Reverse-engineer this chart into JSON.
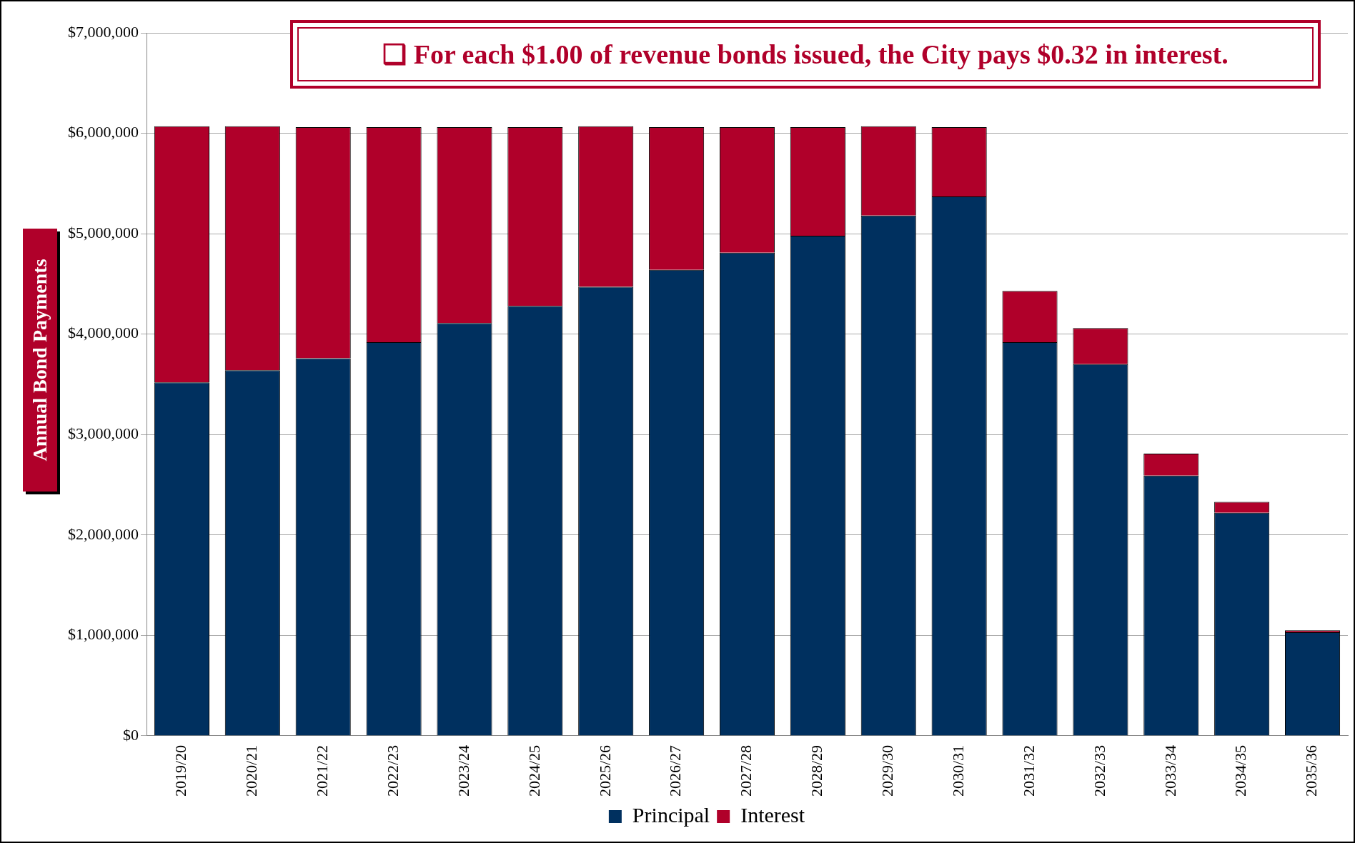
{
  "chart_data": {
    "type": "bar",
    "stacked": true,
    "ylabel": "Annual Bond Payments",
    "annotations": [
      "❑ For each $1.00 of revenue bonds issued, the City pays $0.32 in interest."
    ],
    "categories": [
      "2019/20",
      "2020/21",
      "2021/22",
      "2022/23",
      "2023/24",
      "2024/25",
      "2025/26",
      "2026/27",
      "2027/28",
      "2028/29",
      "2029/30",
      "2030/31",
      "2031/32",
      "2032/33",
      "2033/34",
      "2034/35",
      "2035/36"
    ],
    "series": [
      {
        "name": "Principal",
        "color": "#00305f",
        "values": [
          3520000,
          3640000,
          3760000,
          3920000,
          4110000,
          4280000,
          4470000,
          4640000,
          4810000,
          4980000,
          5180000,
          5370000,
          3920000,
          3700000,
          2590000,
          2220000,
          1030000
        ]
      },
      {
        "name": "Interest",
        "color": "#b0002a",
        "values": [
          2550000,
          2430000,
          2300000,
          2140000,
          1950000,
          1780000,
          1600000,
          1420000,
          1250000,
          1080000,
          890000,
          690000,
          510000,
          360000,
          220000,
          110000,
          20000
        ]
      }
    ],
    "ylim": [
      0,
      7000000
    ],
    "yticks": [
      {
        "value": 0,
        "label": "$0"
      },
      {
        "value": 1000000,
        "label": "$1,000,000"
      },
      {
        "value": 2000000,
        "label": "$2,000,000"
      },
      {
        "value": 3000000,
        "label": "$3,000,000"
      },
      {
        "value": 4000000,
        "label": "$4,000,000"
      },
      {
        "value": 5000000,
        "label": "$5,000,000"
      },
      {
        "value": 6000000,
        "label": "$6,000,000"
      },
      {
        "value": 7000000,
        "label": "$7,000,000"
      }
    ],
    "grid": "y",
    "legend": "bottom"
  }
}
